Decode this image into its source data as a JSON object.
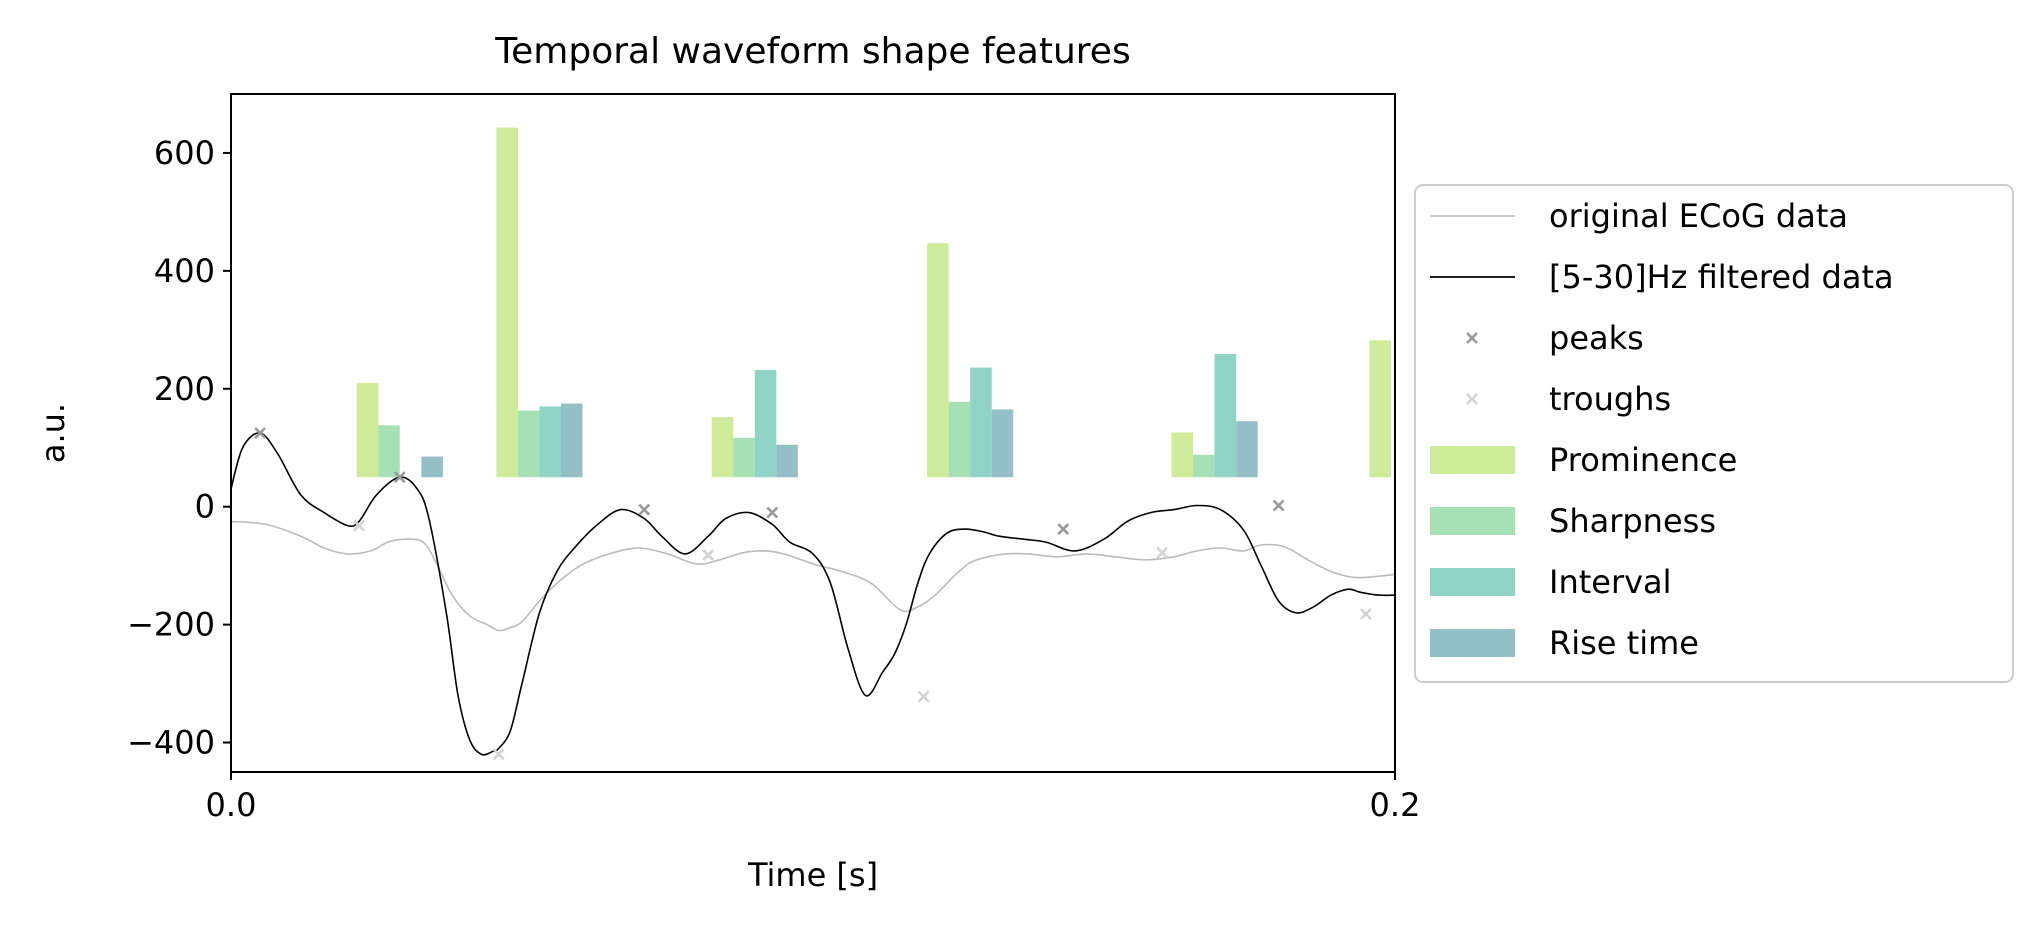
{
  "chart_data": {
    "type": "line",
    "title": "Temporal waveform shape features",
    "xlabel": "Time [s]",
    "ylabel": "a.u.",
    "xlim": [
      0.0,
      0.2
    ],
    "ylim": [
      -450,
      700
    ],
    "xticks": [
      0.0,
      0.2
    ],
    "xtick_labels": [
      "0.0",
      "0.2"
    ],
    "yticks": [
      600,
      400,
      200,
      0,
      -200,
      -400
    ],
    "ytick_labels": [
      "600",
      "400",
      "200",
      "0",
      "−200",
      "−400"
    ],
    "grid": false,
    "legend_position": "right-outside",
    "colors": {
      "original": "#bbbbbb",
      "filtered": "#000000",
      "peaks": "#999999",
      "troughs": "#d3d3d3",
      "prominence": "#cdeb98",
      "sharpness": "#a6e0b5",
      "interval": "#8fd3c6",
      "rise_time": "#94bfc6"
    },
    "legend": [
      {
        "label": "original ECoG data",
        "kind": "line",
        "color": "#bbbbbb"
      },
      {
        "label": "[5-30]Hz filtered data",
        "kind": "line",
        "color": "#000000"
      },
      {
        "label": "peaks",
        "kind": "marker",
        "color": "#999999"
      },
      {
        "label": "troughs",
        "kind": "marker",
        "color": "#d3d3d3"
      },
      {
        "label": "Prominence",
        "kind": "patch",
        "color": "#cdeb98"
      },
      {
        "label": "Sharpness",
        "kind": "patch",
        "color": "#a6e0b5"
      },
      {
        "label": "Interval",
        "kind": "patch",
        "color": "#8fd3c6"
      },
      {
        "label": "Rise time",
        "kind": "patch",
        "color": "#94bfc6"
      }
    ],
    "series": [
      {
        "name": "original ECoG data",
        "x": [
          0.0,
          0.006,
          0.012,
          0.016,
          0.02,
          0.024,
          0.027,
          0.03,
          0.033,
          0.035,
          0.038,
          0.041,
          0.044,
          0.046,
          0.048,
          0.05,
          0.053,
          0.056,
          0.06,
          0.065,
          0.07,
          0.075,
          0.08,
          0.084,
          0.088,
          0.092,
          0.095,
          0.098,
          0.101,
          0.105,
          0.11,
          0.115,
          0.118,
          0.121,
          0.124,
          0.127,
          0.13,
          0.133,
          0.137,
          0.142,
          0.147,
          0.152,
          0.157,
          0.162,
          0.166,
          0.17,
          0.174,
          0.177,
          0.181,
          0.185,
          0.189,
          0.193,
          0.197,
          0.2
        ],
        "y": [
          -25,
          -30,
          -50,
          -70,
          -80,
          -75,
          -60,
          -55,
          -60,
          -90,
          -150,
          -185,
          -200,
          -210,
          -205,
          -195,
          -160,
          -130,
          -100,
          -80,
          -70,
          -80,
          -97,
          -90,
          -78,
          -75,
          -80,
          -90,
          -100,
          -110,
          -130,
          -175,
          -170,
          -150,
          -120,
          -95,
          -85,
          -80,
          -80,
          -85,
          -80,
          -85,
          -90,
          -85,
          -75,
          -70,
          -75,
          -65,
          -68,
          -90,
          -110,
          -120,
          -118,
          -115
        ]
      },
      {
        "name": "[5-30]Hz filtered data",
        "x": [
          0.0,
          0.002,
          0.005,
          0.008,
          0.012,
          0.016,
          0.02,
          0.022,
          0.025,
          0.029,
          0.032,
          0.034,
          0.037,
          0.039,
          0.041,
          0.043,
          0.045,
          0.046,
          0.048,
          0.05,
          0.053,
          0.056,
          0.059,
          0.063,
          0.067,
          0.071,
          0.074,
          0.078,
          0.082,
          0.085,
          0.089,
          0.093,
          0.096,
          0.1,
          0.103,
          0.106,
          0.109,
          0.112,
          0.114,
          0.116,
          0.118,
          0.12,
          0.123,
          0.126,
          0.129,
          0.132,
          0.136,
          0.14,
          0.145,
          0.15,
          0.154,
          0.158,
          0.162,
          0.166,
          0.17,
          0.174,
          0.177,
          0.18,
          0.183,
          0.186,
          0.189,
          0.192,
          0.194,
          0.197,
          0.2
        ],
        "y": [
          30,
          100,
          125,
          90,
          20,
          -10,
          -32,
          -25,
          20,
          50,
          30,
          -20,
          -180,
          -320,
          -395,
          -420,
          -415,
          -410,
          -380,
          -300,
          -180,
          -110,
          -70,
          -30,
          -5,
          -20,
          -50,
          -80,
          -50,
          -20,
          -10,
          -30,
          -60,
          -80,
          -130,
          -240,
          -320,
          -280,
          -250,
          -200,
          -130,
          -80,
          -45,
          -38,
          -42,
          -50,
          -55,
          -60,
          -75,
          -55,
          -25,
          -10,
          -5,
          2,
          -5,
          -40,
          -100,
          -160,
          -180,
          -170,
          -150,
          -140,
          -145,
          -150,
          -150
        ]
      }
    ],
    "peaks": {
      "x": [
        0.005,
        0.029,
        0.071,
        0.093,
        0.143,
        0.18
      ],
      "y": [
        125,
        50,
        -5,
        -10,
        -38,
        2
      ]
    },
    "troughs": {
      "x": [
        0.022,
        0.046,
        0.082,
        0.119,
        0.16,
        0.195
      ],
      "y": [
        -32,
        -420,
        -82,
        -322,
        -78,
        -182
      ]
    },
    "features": {
      "names": [
        "Prominence",
        "Sharpness",
        "Interval",
        "Rise time"
      ],
      "baseline": 50,
      "groups": [
        {
          "x": 0.029,
          "values": [
            210,
            138,
            null,
            85
          ]
        },
        {
          "x": 0.053,
          "values": [
            643,
            163,
            170,
            175
          ]
        },
        {
          "x": 0.09,
          "values": [
            152,
            117,
            232,
            105
          ]
        },
        {
          "x": 0.127,
          "values": [
            447,
            178,
            236,
            165
          ]
        },
        {
          "x": 0.169,
          "values": [
            126,
            88,
            259,
            145
          ]
        },
        {
          "x": 0.203,
          "values": [
            282,
            null,
            null,
            null
          ]
        }
      ]
    }
  }
}
